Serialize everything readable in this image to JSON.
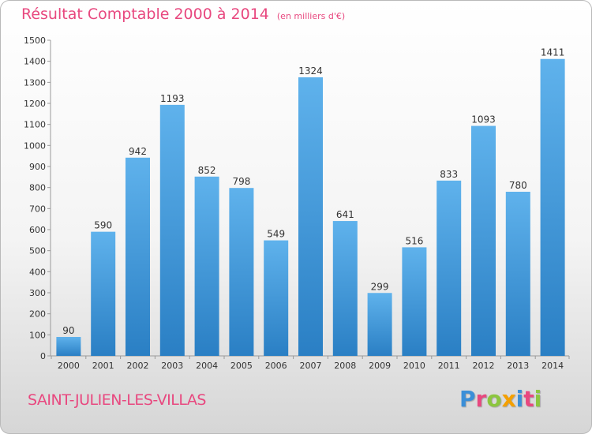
{
  "header": {
    "title": "Résultat Comptable 2000 à 2014",
    "subtitle": "(en milliers d'€)"
  },
  "footer": {
    "location": "SAINT-JULIEN-LES-VILLAS",
    "logo_text": "Proxiti",
    "logo_colors": [
      "#3b8fd8",
      "#e8487f",
      "#8cc63f",
      "#f4a000",
      "#3b8fd8",
      "#e8487f",
      "#8cc63f"
    ]
  },
  "colors": {
    "bar_top": "#5fb2ec",
    "bar_bottom": "#2a7fc4",
    "accent": "#e8487f"
  },
  "chart_data": {
    "type": "bar",
    "title": "Résultat Comptable 2000 à 2014",
    "subtitle": "(en milliers d'€)",
    "xlabel": "",
    "ylabel": "",
    "categories": [
      "2000",
      "2001",
      "2002",
      "2003",
      "2004",
      "2005",
      "2006",
      "2007",
      "2008",
      "2009",
      "2010",
      "2011",
      "2012",
      "2013",
      "2014"
    ],
    "values": [
      90,
      590,
      942,
      1193,
      852,
      798,
      549,
      1324,
      641,
      299,
      516,
      833,
      1093,
      780,
      1411
    ],
    "ylim": [
      0,
      1500
    ],
    "yticks": [
      0,
      100,
      200,
      300,
      400,
      500,
      600,
      700,
      800,
      900,
      1000,
      1100,
      1200,
      1300,
      1400,
      1500
    ],
    "grid": false,
    "data_labels": true
  }
}
